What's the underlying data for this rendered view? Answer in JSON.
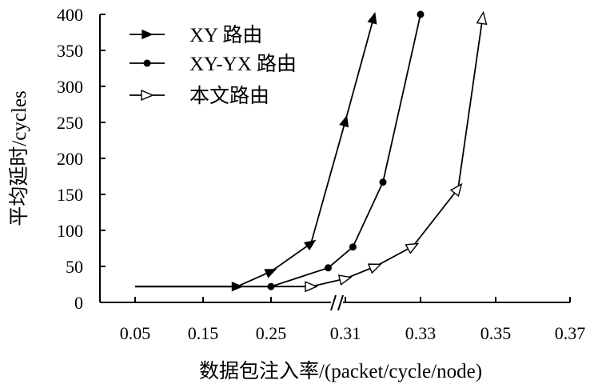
{
  "chart_data": {
    "type": "line",
    "ylabel": "平均延时/cycles",
    "xlabel": "数据包注入率/(packet/cycle/node)",
    "x_tick_labels": [
      "0.05",
      "0.15",
      "0.25",
      "0.31",
      "0.33",
      "0.35",
      "0.37"
    ],
    "y_ticks": [
      0,
      50,
      100,
      150,
      200,
      250,
      300,
      350,
      400
    ],
    "ylim": [
      0,
      400
    ],
    "axis_break": "x",
    "grid": false,
    "legend_position": "top-left",
    "series": [
      {
        "name": "XY 路由",
        "marker": "filled-triangle",
        "points": [
          {
            "x": 0.05,
            "y": 22
          },
          {
            "x": 0.2,
            "y": 22
          },
          {
            "x": 0.25,
            "y": 43
          },
          {
            "x": 0.27,
            "y": 82
          },
          {
            "x": 0.31,
            "y": 252
          },
          {
            "x": 0.3175,
            "y": 395
          }
        ]
      },
      {
        "name": "XY-YX 路由",
        "marker": "filled-circle",
        "points": [
          {
            "x": 0.05,
            "y": 22
          },
          {
            "x": 0.25,
            "y": 22
          },
          {
            "x": 0.29,
            "y": 48
          },
          {
            "x": 0.312,
            "y": 77
          },
          {
            "x": 0.32,
            "y": 167
          },
          {
            "x": 0.33,
            "y": 400
          }
        ]
      },
      {
        "name": "本文路由",
        "marker": "hollow-triangle",
        "points": [
          {
            "x": 0.05,
            "y": 22
          },
          {
            "x": 0.27,
            "y": 22
          },
          {
            "x": 0.31,
            "y": 33
          },
          {
            "x": 0.318,
            "y": 50
          },
          {
            "x": 0.328,
            "y": 78
          },
          {
            "x": 0.34,
            "y": 158
          },
          {
            "x": 0.3465,
            "y": 395
          }
        ]
      }
    ]
  }
}
